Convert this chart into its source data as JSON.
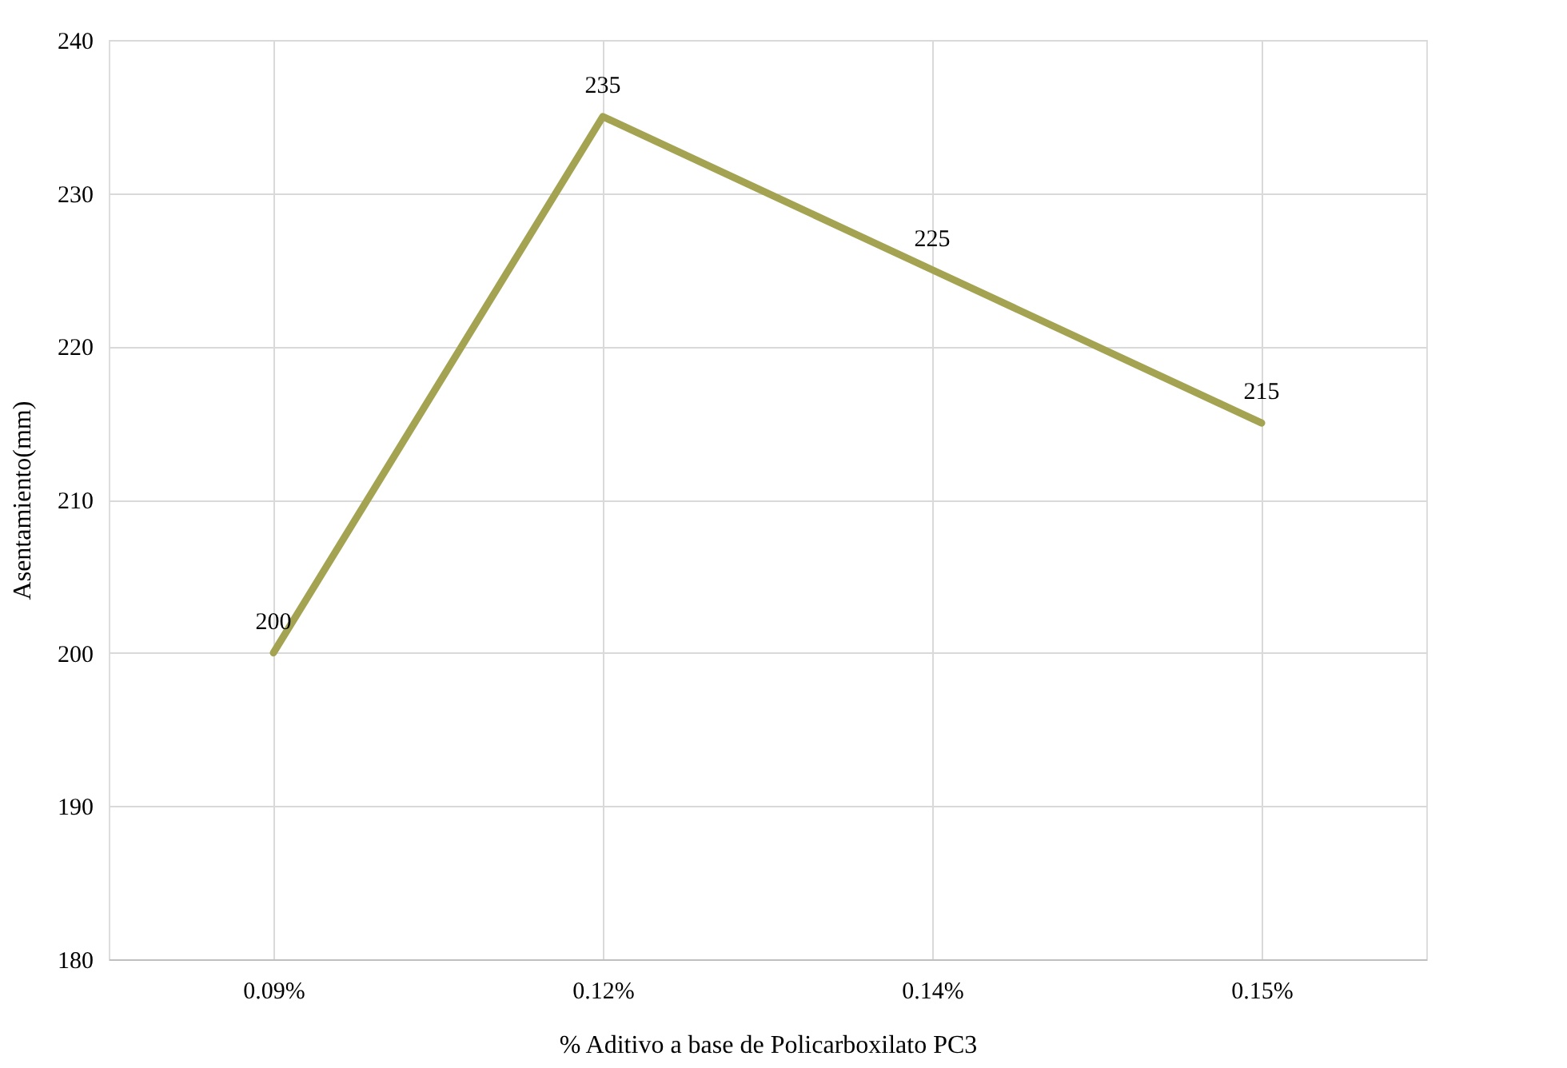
{
  "chart_data": {
    "type": "line",
    "xlabel": "% Aditivo a base de Policarboxilato PC3",
    "ylabel": "Asentamiento(mm)",
    "categories": [
      "0.09%",
      "0.12%",
      "0.14%",
      "0.15%"
    ],
    "series": [
      {
        "color": "#a3a352",
        "values": [
          200,
          235,
          225,
          215
        ]
      }
    ],
    "ylim": [
      180,
      240
    ],
    "yticks": [
      180,
      190,
      200,
      210,
      220,
      230,
      240
    ],
    "grid": true,
    "data_labels": true,
    "marker": "none",
    "line_style": "solid"
  }
}
